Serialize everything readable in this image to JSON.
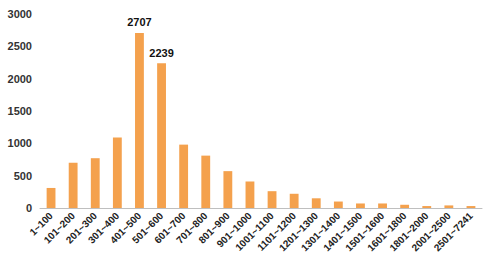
{
  "chart_data": {
    "type": "bar",
    "categories": [
      "1~100",
      "101~200",
      "201~300",
      "301~400",
      "401~500",
      "501~600",
      "601~700",
      "701~800",
      "801~900",
      "901~1000",
      "1001~1100",
      "1101~1200",
      "1201~1300",
      "1301~1400",
      "1401~1500",
      "1501~1600",
      "1601~1800",
      "1801~2000",
      "2001~2500",
      "2501~7241"
    ],
    "values": [
      310,
      700,
      770,
      1090,
      2707,
      2239,
      980,
      810,
      570,
      410,
      260,
      220,
      150,
      100,
      70,
      70,
      50,
      30,
      40,
      30
    ],
    "value_labels": [
      null,
      null,
      null,
      null,
      "2707",
      "2239",
      null,
      null,
      null,
      null,
      null,
      null,
      null,
      null,
      null,
      null,
      null,
      null,
      null,
      null
    ],
    "color": "#f4a14d",
    "ylim": [
      0,
      3000
    ],
    "yticks": [
      0,
      500,
      1000,
      1500,
      2000,
      2500,
      3000
    ],
    "grid": false
  }
}
